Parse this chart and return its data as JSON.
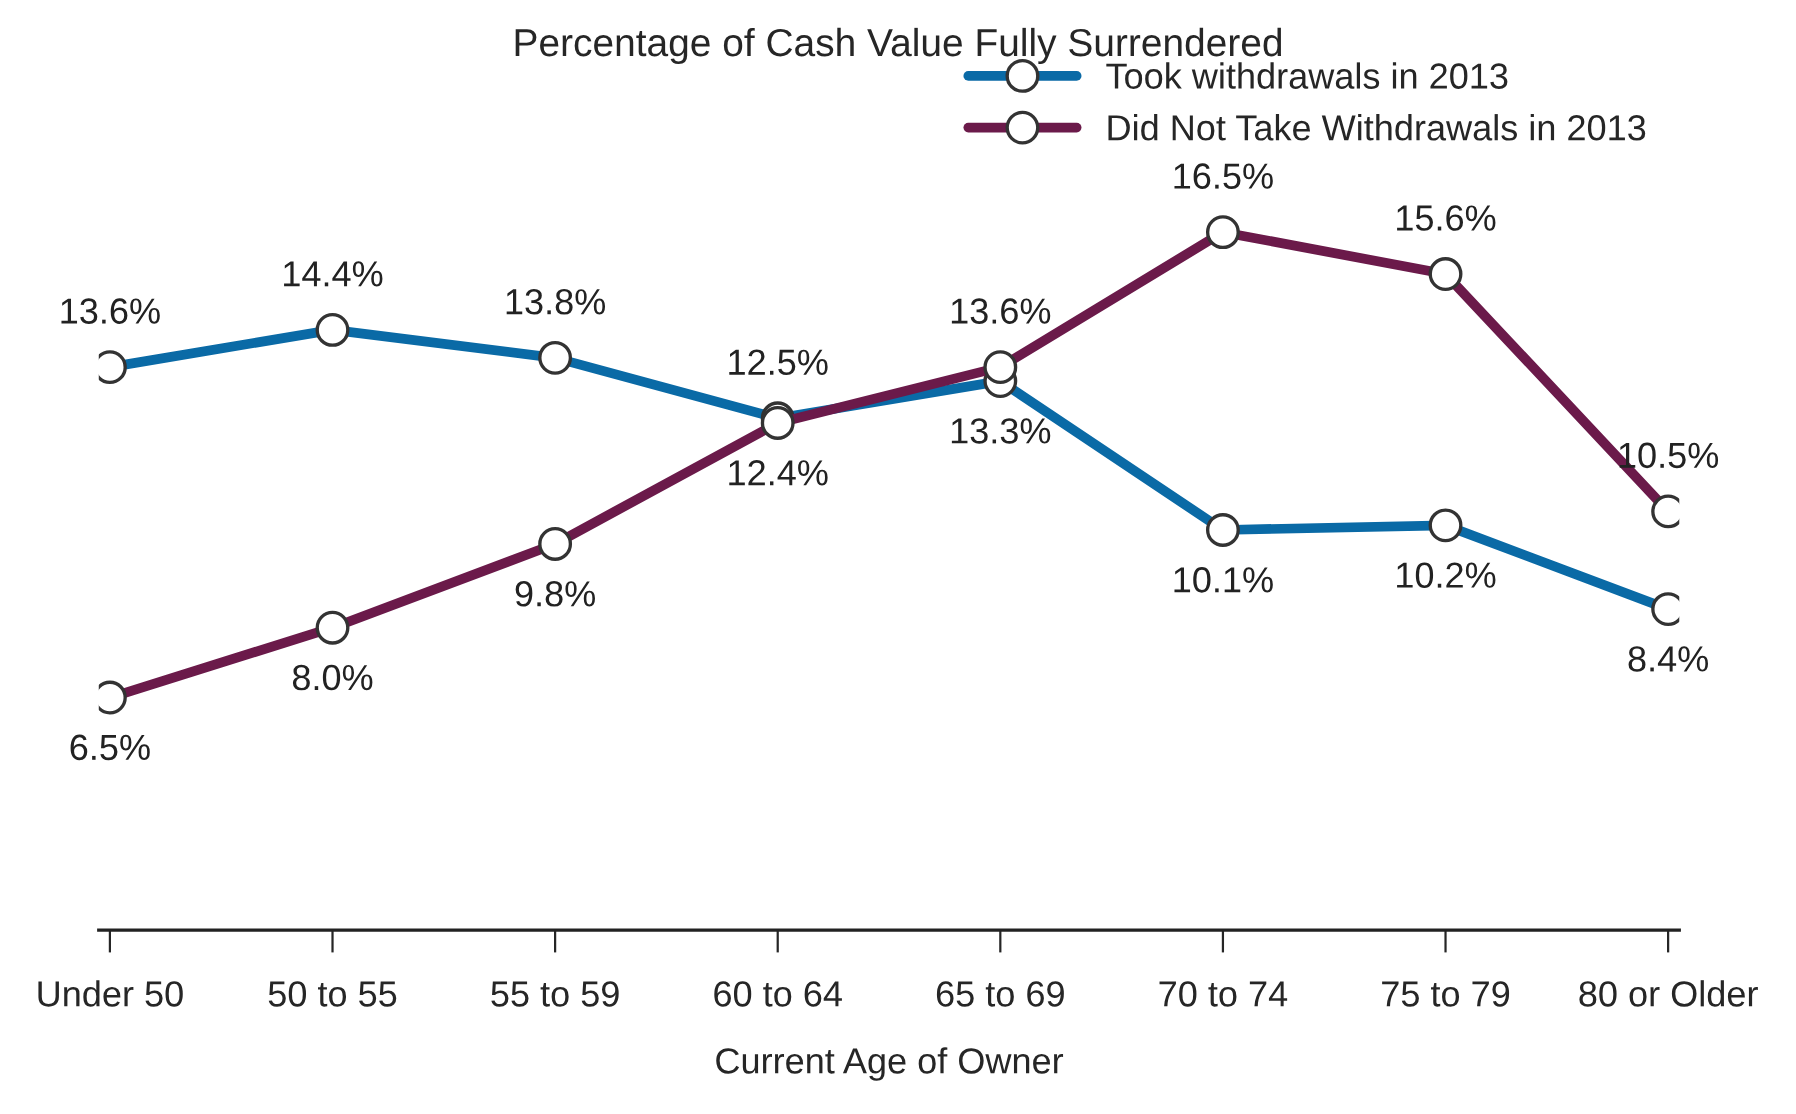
{
  "chart_data": {
    "type": "line",
    "title": "Percentage of Cash Value Fully Surrendered",
    "xlabel": "Current Age of Owner",
    "categories": [
      "Under 50",
      "50 to 55",
      "55 to 59",
      "60 to 64",
      "65 to 69",
      "70 to 74",
      "75 to 79",
      "80 or Older"
    ],
    "series": [
      {
        "name": "Took withdrawals in 2013",
        "color": "#0a6aa6",
        "values": [
          13.6,
          14.4,
          13.8,
          12.5,
          13.3,
          10.1,
          10.2,
          8.4
        ],
        "value_labels": [
          "13.6%",
          "14.4%",
          "13.8%",
          "12.5%",
          "13.3%",
          "10.1%",
          "10.2%",
          "8.4%"
        ]
      },
      {
        "name": "Did Not Take Withdrawals in 2013",
        "color": "#6b1a4a",
        "values": [
          6.5,
          8.0,
          9.8,
          12.4,
          13.6,
          16.5,
          15.6,
          10.5
        ],
        "value_labels": [
          "6.5%",
          "8.0%",
          "9.8%",
          "12.4%",
          "13.6%",
          "16.5%",
          "15.6%",
          "10.5%"
        ]
      }
    ],
    "marker": "circle",
    "line_style": "solid",
    "legend": "top right",
    "grid": false
  }
}
